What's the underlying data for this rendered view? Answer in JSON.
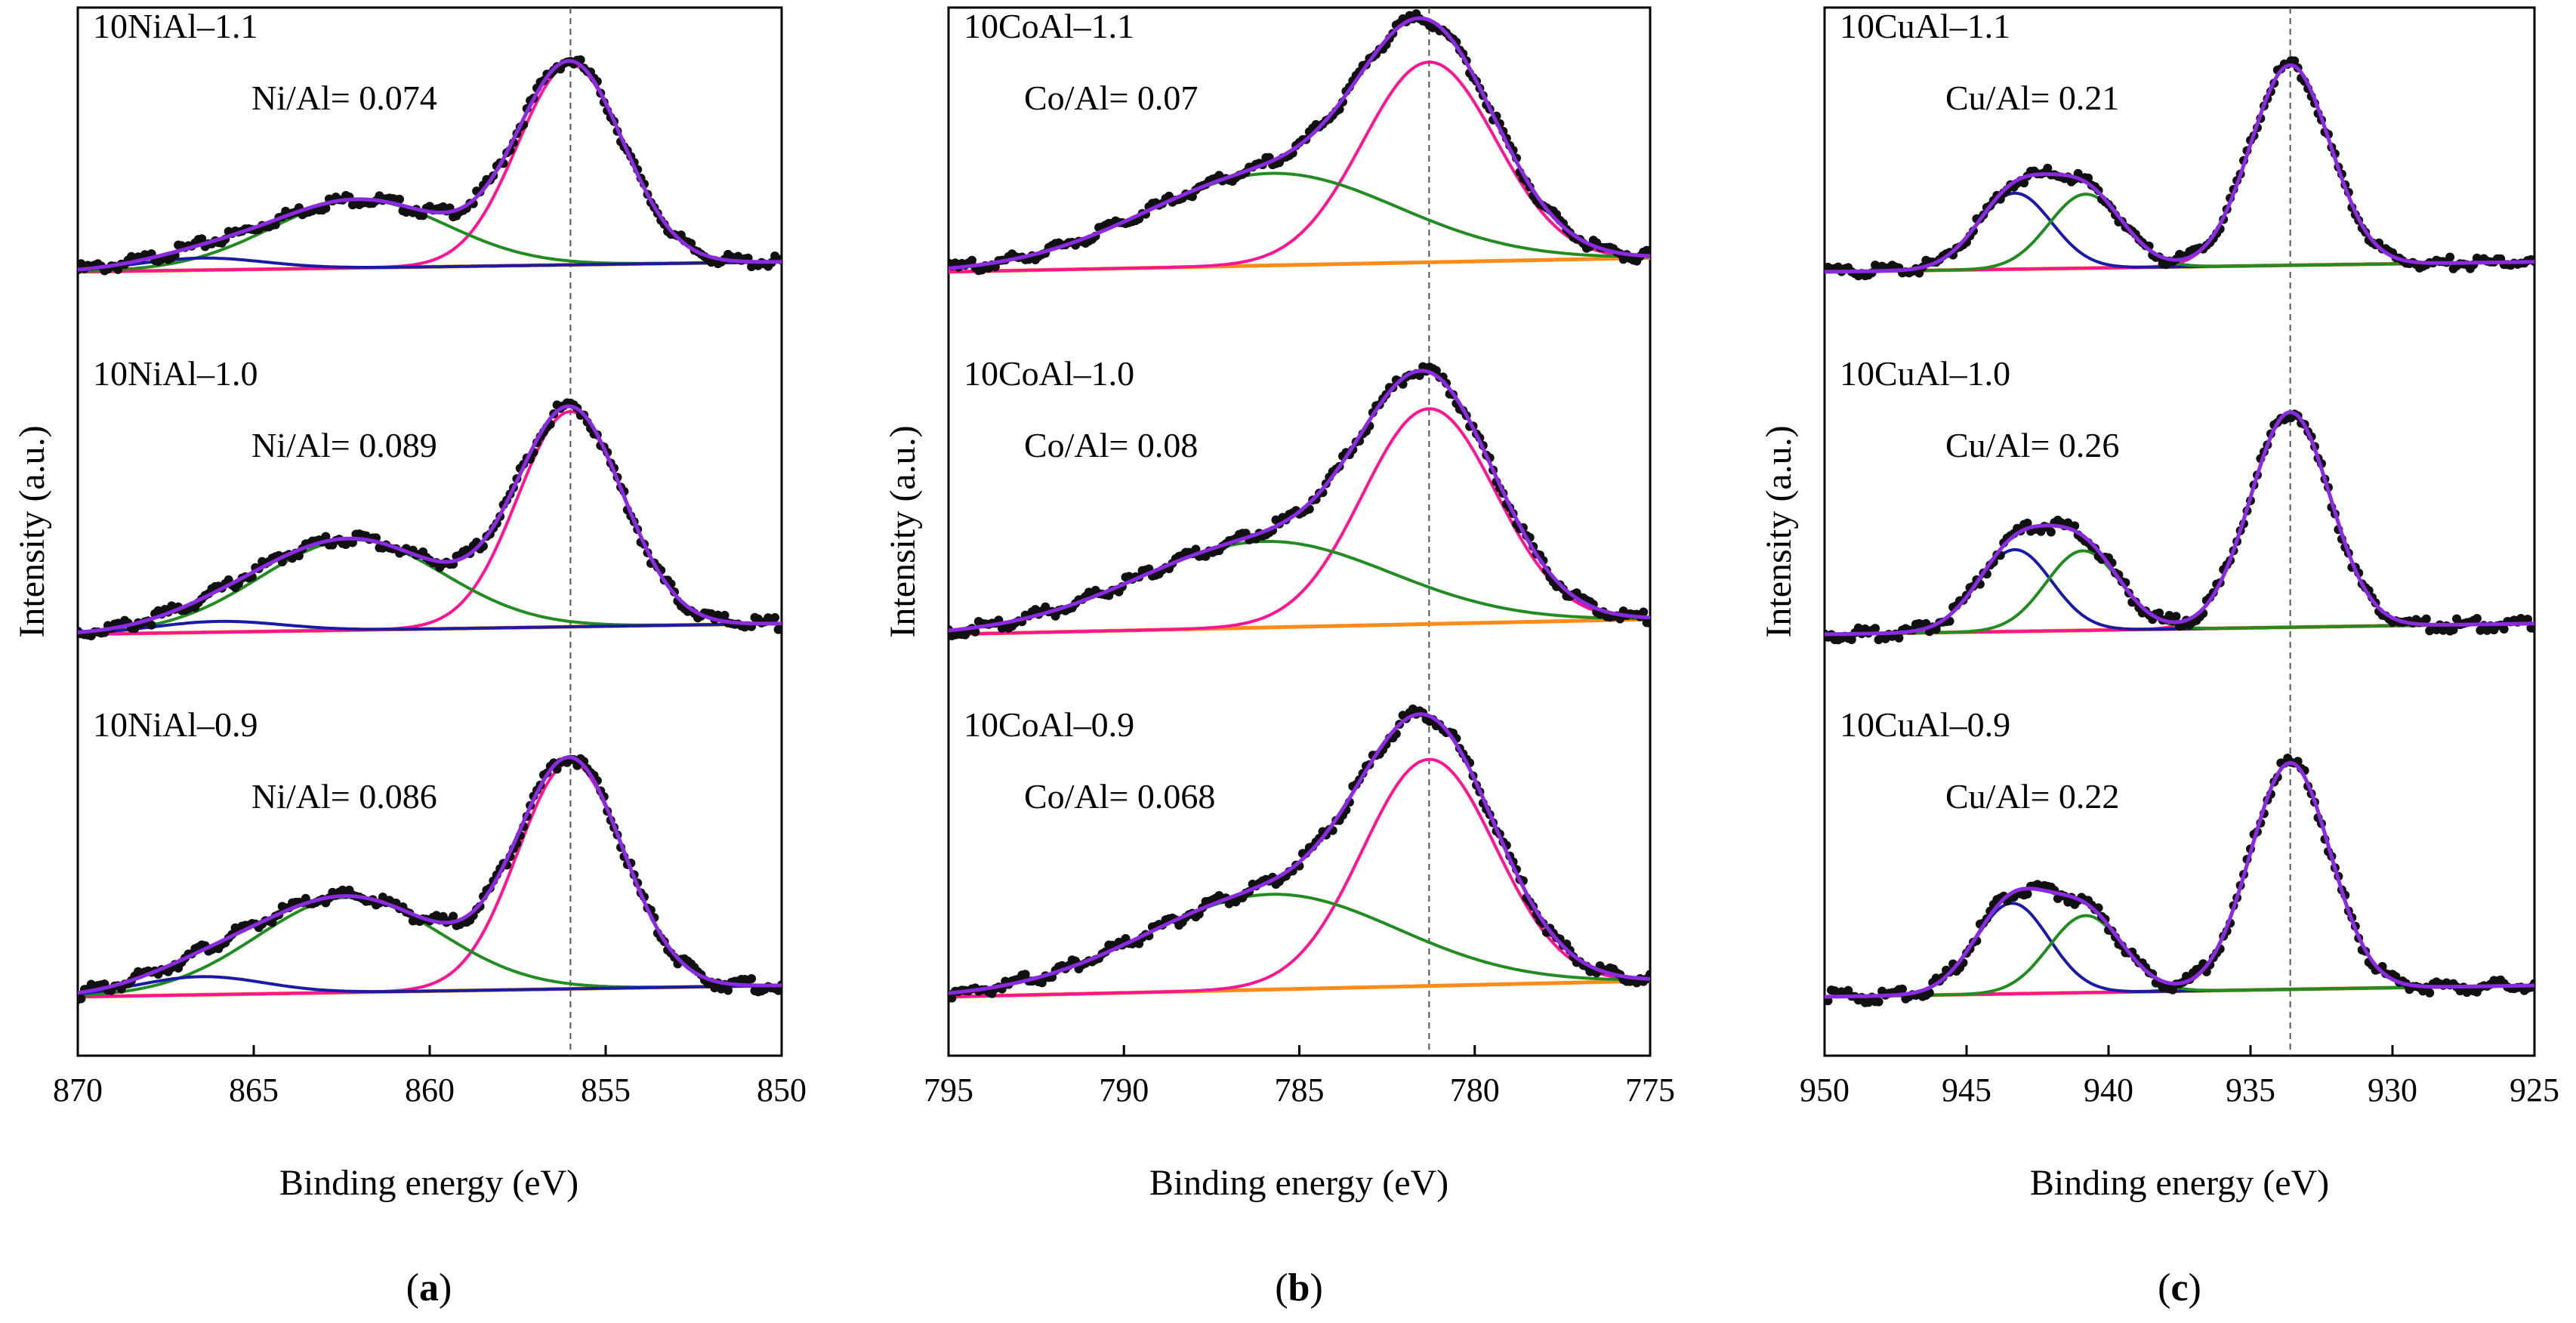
{
  "figure": {
    "ylabel": "Intensity (a.u.)",
    "xlabel": "Binding energy (eV)",
    "colors": {
      "raw": "#111111",
      "envelope": "#8a2be2",
      "main_peak": "#ff1493",
      "satellite_green": "#228b22",
      "satellite_blue": "#1a1aa6",
      "background": "#ff8c1a",
      "reference_line": "#555555"
    }
  },
  "chart_data": [
    {
      "type": "line",
      "panel": "(a)",
      "panel_letter": "a",
      "title": "",
      "xlabel": "Binding energy (eV)",
      "ylabel": "Intensity (a.u.)",
      "xlim": [
        870,
        850
      ],
      "x_reversed": true,
      "xticks": [
        870,
        865,
        860,
        855,
        850
      ],
      "reference_line_x": 856.0,
      "series": [
        {
          "name": "10NiAl–1.1",
          "ratio": "Ni/Al= 0.074",
          "baseline": [
            870,
            0.0,
            850,
            0.05
          ],
          "peaks": [
            {
              "center": 856.0,
              "height": 1.0,
              "width": 1.5,
              "role": "main"
            },
            {
              "center": 862.0,
              "height": 0.34,
              "width": 2.5,
              "role": "green"
            },
            {
              "center": 866.5,
              "height": 0.06,
              "width": 1.8,
              "role": "blue"
            }
          ]
        },
        {
          "name": "10NiAl–1.0",
          "ratio": "Ni/Al= 0.089",
          "baseline": [
            870,
            0.0,
            850,
            0.05
          ],
          "peaks": [
            {
              "center": 856.0,
              "height": 1.0,
              "width": 1.5,
              "role": "main"
            },
            {
              "center": 862.2,
              "height": 0.42,
              "width": 2.6,
              "role": "green"
            },
            {
              "center": 866.0,
              "height": 0.05,
              "width": 1.8,
              "role": "blue"
            }
          ]
        },
        {
          "name": "10NiAl–0.9",
          "ratio": "Ni/Al= 0.086",
          "baseline": [
            870,
            0.0,
            850,
            0.05
          ],
          "peaks": [
            {
              "center": 856.0,
              "height": 1.0,
              "width": 1.5,
              "role": "main"
            },
            {
              "center": 862.3,
              "height": 0.42,
              "width": 2.6,
              "role": "green"
            },
            {
              "center": 866.5,
              "height": 0.08,
              "width": 1.8,
              "role": "blue"
            }
          ]
        }
      ]
    },
    {
      "type": "line",
      "panel": "(b)",
      "panel_letter": "b",
      "title": "",
      "xlabel": "Binding energy (eV)",
      "ylabel": "Intensity (a.u.)",
      "xlim": [
        795,
        775
      ],
      "x_reversed": true,
      "xticks": [
        795,
        790,
        785,
        780,
        775
      ],
      "reference_line_x": 781.3,
      "series": [
        {
          "name": "10CoAl–1.1",
          "ratio": "Co/Al= 0.07",
          "baseline": [
            795,
            0.0,
            775,
            0.07
          ],
          "peaks": [
            {
              "center": 781.3,
              "height": 1.0,
              "width": 1.9,
              "role": "main"
            },
            {
              "center": 785.8,
              "height": 0.46,
              "width": 3.6,
              "role": "green"
            }
          ]
        },
        {
          "name": "10CoAl–1.0",
          "ratio": "Co/Al= 0.08",
          "baseline": [
            795,
            0.0,
            775,
            0.07
          ],
          "peaks": [
            {
              "center": 781.3,
              "height": 1.0,
              "width": 1.9,
              "role": "main"
            },
            {
              "center": 786.0,
              "height": 0.4,
              "width": 3.6,
              "role": "green"
            }
          ]
        },
        {
          "name": "10CoAl–0.9",
          "ratio": "Co/Al= 0.068",
          "baseline": [
            795,
            0.0,
            775,
            0.07
          ],
          "peaks": [
            {
              "center": 781.3,
              "height": 1.0,
              "width": 1.9,
              "role": "main"
            },
            {
              "center": 785.8,
              "height": 0.42,
              "width": 3.6,
              "role": "green"
            }
          ]
        }
      ]
    },
    {
      "type": "line",
      "panel": "(c)",
      "panel_letter": "c",
      "title": "",
      "xlabel": "Binding energy (eV)",
      "ylabel": "Intensity (a.u.)",
      "xlim": [
        950,
        925
      ],
      "x_reversed": true,
      "xticks": [
        950,
        945,
        940,
        935,
        930,
        925
      ],
      "reference_line_x": 933.6,
      "series": [
        {
          "name": "10CuAl–1.1",
          "ratio": "Cu/Al= 0.21",
          "baseline": [
            950,
            0.0,
            925,
            0.05
          ],
          "peaks": [
            {
              "center": 933.6,
              "height": 1.0,
              "width": 1.4,
              "role": "main"
            },
            {
              "center": 943.3,
              "height": 0.38,
              "width": 1.3,
              "role": "blue"
            },
            {
              "center": 940.8,
              "height": 0.37,
              "width": 1.3,
              "role": "green"
            }
          ]
        },
        {
          "name": "10CuAl–1.0",
          "ratio": "Cu/Al= 0.26",
          "baseline": [
            950,
            0.0,
            925,
            0.05
          ],
          "peaks": [
            {
              "center": 933.6,
              "height": 1.0,
              "width": 1.4,
              "role": "main"
            },
            {
              "center": 943.3,
              "height": 0.38,
              "width": 1.3,
              "role": "blue"
            },
            {
              "center": 940.9,
              "height": 0.37,
              "width": 1.3,
              "role": "green"
            }
          ]
        },
        {
          "name": "10CuAl–0.9",
          "ratio": "Cu/Al= 0.22",
          "baseline": [
            950,
            0.0,
            925,
            0.05
          ],
          "peaks": [
            {
              "center": 933.6,
              "height": 1.0,
              "width": 1.4,
              "role": "main"
            },
            {
              "center": 943.4,
              "height": 0.4,
              "width": 1.3,
              "role": "blue"
            },
            {
              "center": 940.8,
              "height": 0.34,
              "width": 1.3,
              "role": "green"
            }
          ]
        }
      ]
    }
  ]
}
